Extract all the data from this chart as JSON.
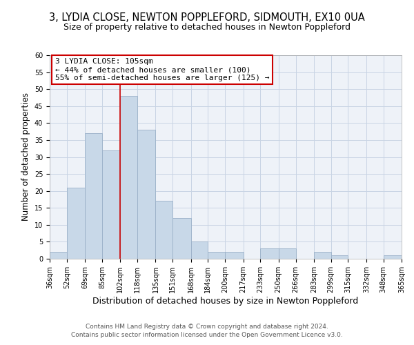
{
  "title": "3, LYDIA CLOSE, NEWTON POPPLEFORD, SIDMOUTH, EX10 0UA",
  "subtitle": "Size of property relative to detached houses in Newton Poppleford",
  "xlabel": "Distribution of detached houses by size in Newton Poppleford",
  "ylabel": "Number of detached properties",
  "bin_edges": [
    36,
    52,
    69,
    85,
    102,
    118,
    135,
    151,
    168,
    184,
    200,
    217,
    233,
    250,
    266,
    283,
    299,
    315,
    332,
    348,
    365
  ],
  "bar_heights": [
    2,
    21,
    37,
    32,
    48,
    38,
    17,
    12,
    5,
    2,
    2,
    0,
    3,
    3,
    0,
    2,
    1,
    0,
    0,
    1
  ],
  "bar_color": "#c8d8e8",
  "bar_edgecolor": "#9ab0c8",
  "bar_linewidth": 0.6,
  "grid_color": "#c8d4e4",
  "background_color": "#eef2f8",
  "red_line_x": 102,
  "annotation_title": "3 LYDIA CLOSE: 105sqm",
  "annotation_line1": "← 44% of detached houses are smaller (100)",
  "annotation_line2": "55% of semi-detached houses are larger (125) →",
  "annotation_box_color": "#ffffff",
  "annotation_border_color": "#cc0000",
  "ylim": [
    0,
    60
  ],
  "yticks": [
    0,
    5,
    10,
    15,
    20,
    25,
    30,
    35,
    40,
    45,
    50,
    55,
    60
  ],
  "tick_labels": [
    "36sqm",
    "52sqm",
    "69sqm",
    "85sqm",
    "102sqm",
    "118sqm",
    "135sqm",
    "151sqm",
    "168sqm",
    "184sqm",
    "200sqm",
    "217sqm",
    "233sqm",
    "250sqm",
    "266sqm",
    "283sqm",
    "299sqm",
    "315sqm",
    "332sqm",
    "348sqm",
    "365sqm"
  ],
  "footer1": "Contains HM Land Registry data © Crown copyright and database right 2024.",
  "footer2": "Contains public sector information licensed under the Open Government Licence v3.0.",
  "title_fontsize": 10.5,
  "subtitle_fontsize": 9,
  "xlabel_fontsize": 9,
  "ylabel_fontsize": 8.5,
  "tick_fontsize": 7,
  "annotation_fontsize": 8,
  "footer_fontsize": 6.5
}
